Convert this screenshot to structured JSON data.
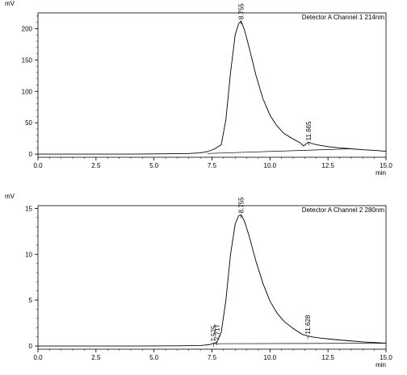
{
  "chart_data": [
    {
      "type": "line",
      "title": "Detector A Channel 1 214nm",
      "ylabel": "mV",
      "xlabel": "min",
      "xlim": [
        0,
        15
      ],
      "ylim": [
        -5,
        225
      ],
      "x_ticks": [
        "0.0",
        "2.5",
        "5.0",
        "7.5",
        "10.0",
        "12.5",
        "15.0"
      ],
      "y_ticks": [
        "0",
        "50",
        "100",
        "150",
        "200"
      ],
      "series": [
        {
          "x": [
            0,
            2,
            4,
            5.6,
            6.5,
            7.0,
            7.3,
            7.6,
            7.9,
            8.1,
            8.3,
            8.5,
            8.65,
            8.755,
            8.9,
            9.1,
            9.4,
            9.7,
            10.0,
            10.3,
            10.6,
            11.0,
            11.3,
            11.45,
            11.55,
            11.665,
            11.8,
            12.0,
            12.5,
            13.0,
            13.5,
            14.0,
            14.5,
            15.0
          ],
          "y": [
            0,
            0,
            0,
            0.5,
            1,
            2,
            4,
            8,
            15,
            55,
            130,
            190,
            208,
            212,
            198,
            170,
            125,
            88,
            62,
            45,
            33,
            24,
            18,
            13,
            16,
            19,
            17,
            15,
            12,
            10,
            8.5,
            7,
            6,
            4.5
          ]
        },
        {
          "x": [
            7.3,
            13.5
          ],
          "y": [
            1,
            8.5
          ]
        }
      ],
      "peaks": [
        {
          "label": "8.755",
          "x": 8.755,
          "y": 212
        },
        {
          "label": "11.665",
          "x": 11.665,
          "y": 19
        }
      ]
    },
    {
      "type": "line",
      "title": "Detector A Channel 2 280nm",
      "ylabel": "mV",
      "xlabel": "min",
      "xlim": [
        0,
        15
      ],
      "ylim": [
        -0.35,
        15.3
      ],
      "x_ticks": [
        "0.0",
        "2.5",
        "5.0",
        "7.5",
        "10.0",
        "12.5",
        "15.0"
      ],
      "y_ticks": [
        "0",
        "5",
        "10",
        "15"
      ],
      "series": [
        {
          "x": [
            0,
            2,
            4,
            6,
            7.0,
            7.4,
            7.575,
            7.65,
            7.717,
            7.9,
            8.1,
            8.3,
            8.5,
            8.65,
            8.755,
            8.9,
            9.1,
            9.4,
            9.7,
            10.0,
            10.3,
            10.6,
            11.0,
            11.4,
            11.628,
            11.8,
            12.2,
            12.6,
            13.0,
            13.5,
            14.0,
            14.5,
            15.0
          ],
          "y": [
            0,
            0,
            0,
            0.02,
            0.05,
            0.15,
            0.3,
            0.35,
            0.45,
            1.5,
            5,
            10,
            13.3,
            14.2,
            14.3,
            13.6,
            12,
            9.2,
            6.8,
            4.9,
            3.6,
            2.7,
            1.9,
            1.25,
            1.1,
            1.0,
            0.85,
            0.75,
            0.65,
            0.55,
            0.45,
            0.38,
            0.3
          ]
        },
        {
          "x": [
            7.6,
            15.0
          ],
          "y": [
            0.25,
            0.3
          ]
        }
      ],
      "peaks": [
        {
          "label": "7.575",
          "x": 7.575,
          "y": 0.3
        },
        {
          "label": "7.717",
          "x": 7.717,
          "y": 0.45
        },
        {
          "label": "8.755",
          "x": 8.755,
          "y": 14.3
        },
        {
          "label": "11.628",
          "x": 11.628,
          "y": 1.1
        }
      ]
    }
  ]
}
